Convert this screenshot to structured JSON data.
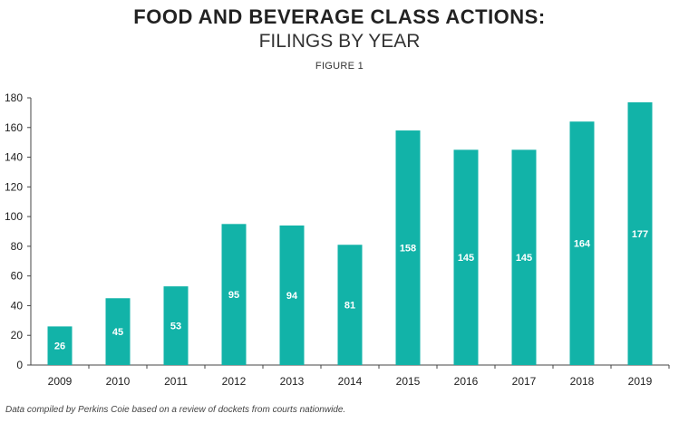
{
  "header": {
    "title": "FOOD AND BEVERAGE CLASS ACTIONS:",
    "subtitle": "FILINGS BY YEAR",
    "figure_label": "FIGURE 1"
  },
  "footer": {
    "note": "Data compiled by Perkins Coie based on a review of dockets from courts nationwide."
  },
  "colors": {
    "bar": "#12b3a8",
    "axis": "#444444",
    "grid": "#bbbbbb"
  },
  "chart_data": {
    "type": "bar",
    "title": "FOOD AND BEVERAGE CLASS ACTIONS:",
    "subtitle": "FILINGS BY YEAR",
    "categories": [
      "2009",
      "2010",
      "2011",
      "2012",
      "2013",
      "2014",
      "2015",
      "2016",
      "2017",
      "2018",
      "2019"
    ],
    "values": [
      26,
      45,
      53,
      95,
      94,
      81,
      158,
      145,
      145,
      164,
      177
    ],
    "value_labels": [
      "26",
      "45",
      "53",
      "95",
      "94",
      "81",
      "158",
      "145",
      "145",
      "164",
      "177"
    ],
    "ylim": [
      0,
      180
    ],
    "yticks": [
      0,
      20,
      40,
      60,
      80,
      100,
      120,
      140,
      160,
      180
    ],
    "xlabel": "",
    "ylabel": "",
    "grid": false,
    "legend": "none"
  }
}
